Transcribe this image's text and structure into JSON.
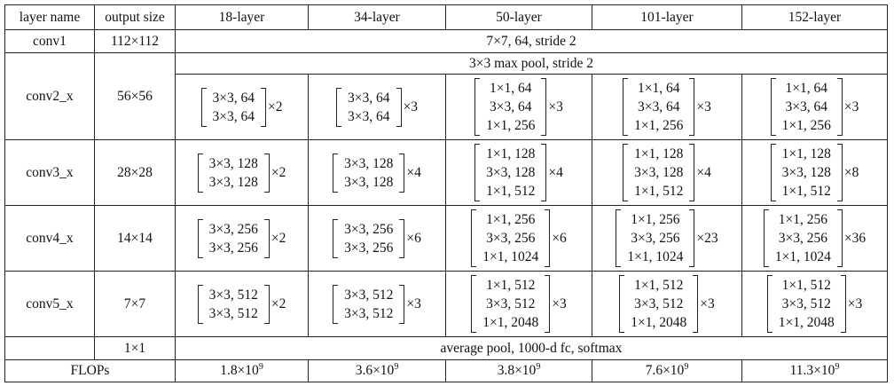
{
  "table": {
    "headers": [
      "layer name",
      "output size",
      "18-layer",
      "34-layer",
      "50-layer",
      "101-layer",
      "152-layer"
    ],
    "rows": [
      {
        "name": "conv1",
        "size": "112×112",
        "span": "7×7, 64, stride 2"
      },
      {
        "name": "conv2_x",
        "size": "56×56",
        "span": "3×3 max pool, stride 2",
        "blocks": [
          {
            "lines": [
              "3×3, 64",
              "3×3, 64"
            ],
            "times": "×2"
          },
          {
            "lines": [
              "3×3, 64",
              "3×3, 64"
            ],
            "times": "×3"
          },
          {
            "lines": [
              "1×1, 64",
              "3×3, 64",
              "1×1, 256"
            ],
            "times": "×3"
          },
          {
            "lines": [
              "1×1, 64",
              "3×3, 64",
              "1×1, 256"
            ],
            "times": "×3"
          },
          {
            "lines": [
              "1×1, 64",
              "3×3, 64",
              "1×1, 256"
            ],
            "times": "×3"
          }
        ]
      },
      {
        "name": "conv3_x",
        "size": "28×28",
        "blocks": [
          {
            "lines": [
              "3×3, 128",
              "3×3, 128"
            ],
            "times": "×2"
          },
          {
            "lines": [
              "3×3, 128",
              "3×3, 128"
            ],
            "times": "×4"
          },
          {
            "lines": [
              "1×1, 128",
              "3×3, 128",
              "1×1, 512"
            ],
            "times": "×4"
          },
          {
            "lines": [
              "1×1, 128",
              "3×3, 128",
              "1×1, 512"
            ],
            "times": "×4"
          },
          {
            "lines": [
              "1×1, 128",
              "3×3, 128",
              "1×1, 512"
            ],
            "times": "×8"
          }
        ]
      },
      {
        "name": "conv4_x",
        "size": "14×14",
        "blocks": [
          {
            "lines": [
              "3×3, 256",
              "3×3, 256"
            ],
            "times": "×2"
          },
          {
            "lines": [
              "3×3, 256",
              "3×3, 256"
            ],
            "times": "×6"
          },
          {
            "lines": [
              "1×1, 256",
              "3×3, 256",
              "1×1, 1024"
            ],
            "times": "×6"
          },
          {
            "lines": [
              "1×1, 256",
              "3×3, 256",
              "1×1, 1024"
            ],
            "times": "×23"
          },
          {
            "lines": [
              "1×1, 256",
              "3×3, 256",
              "1×1, 1024"
            ],
            "times": "×36"
          }
        ]
      },
      {
        "name": "conv5_x",
        "size": "7×7",
        "blocks": [
          {
            "lines": [
              "3×3, 512",
              "3×3, 512"
            ],
            "times": "×2"
          },
          {
            "lines": [
              "3×3, 512",
              "3×3, 512"
            ],
            "times": "×3"
          },
          {
            "lines": [
              "1×1, 512",
              "3×3, 512",
              "1×1, 2048"
            ],
            "times": "×3"
          },
          {
            "lines": [
              "1×1, 512",
              "3×3, 512",
              "1×1, 2048"
            ],
            "times": "×3"
          },
          {
            "lines": [
              "1×1, 512",
              "3×3, 512",
              "1×1, 2048"
            ],
            "times": "×3"
          }
        ]
      },
      {
        "size": "1×1",
        "span": "average pool, 1000-d fc, softmax"
      }
    ],
    "flops": {
      "label": "FLOPs",
      "values": [
        {
          "base": "1.8×10",
          "exp": "9"
        },
        {
          "base": "3.6×10",
          "exp": "9"
        },
        {
          "base": "3.8×10",
          "exp": "9"
        },
        {
          "base": "7.6×10",
          "exp": "9"
        },
        {
          "base": "11.3×10",
          "exp": "9"
        }
      ]
    }
  }
}
